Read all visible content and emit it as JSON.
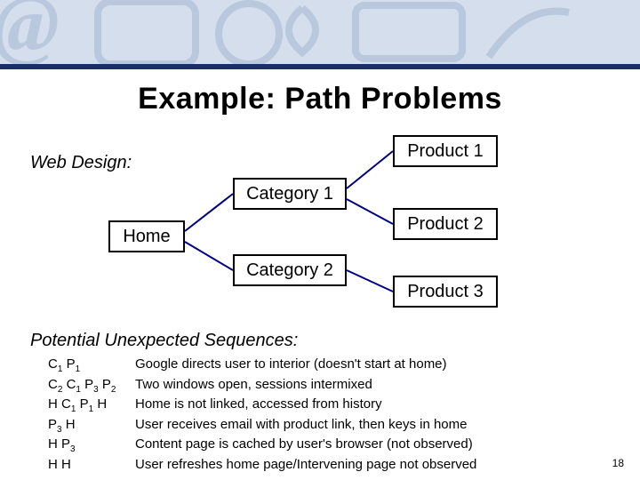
{
  "title": "Example: Path Problems",
  "web_design_label": "Web Design:",
  "colors": {
    "header_band": "#d4deec",
    "header_accent": "#b9c8dd",
    "blue_rule": "#1a2f6b",
    "connector": "#000080",
    "box_border": "#000000",
    "text": "#000000"
  },
  "diagram": {
    "nodes": {
      "home": "Home",
      "cat1": "Category 1",
      "cat2": "Category 2",
      "prod1": "Product 1",
      "prod2": "Product 2",
      "prod3": "Product 3"
    },
    "edges": [
      [
        "home",
        "cat1"
      ],
      [
        "home",
        "cat2"
      ],
      [
        "cat1",
        "prod1"
      ],
      [
        "cat1",
        "prod2"
      ],
      [
        "cat2",
        "prod3"
      ]
    ]
  },
  "sequences_heading": "Potential Unexpected Sequences:",
  "sequences": [
    {
      "codes": [
        "C1",
        "P1"
      ],
      "desc": "Google directs user to interior (doesn't start at home)"
    },
    {
      "codes": [
        "C2",
        "C1",
        "P3",
        "P2"
      ],
      "desc": "Two windows open, sessions intermixed"
    },
    {
      "codes": [
        "H",
        "C1",
        "P1",
        "H"
      ],
      "desc": "Home is not linked, accessed from history"
    },
    {
      "codes": [
        "P3",
        "H"
      ],
      "desc": "User receives email with product link, then keys in home"
    },
    {
      "codes": [
        "H",
        "P3"
      ],
      "desc": "Content page is cached by user's browser (not observed)"
    },
    {
      "codes": [
        "H",
        "H"
      ],
      "desc": "User refreshes home page/Intervening page not observed"
    }
  ],
  "page_number": "18"
}
